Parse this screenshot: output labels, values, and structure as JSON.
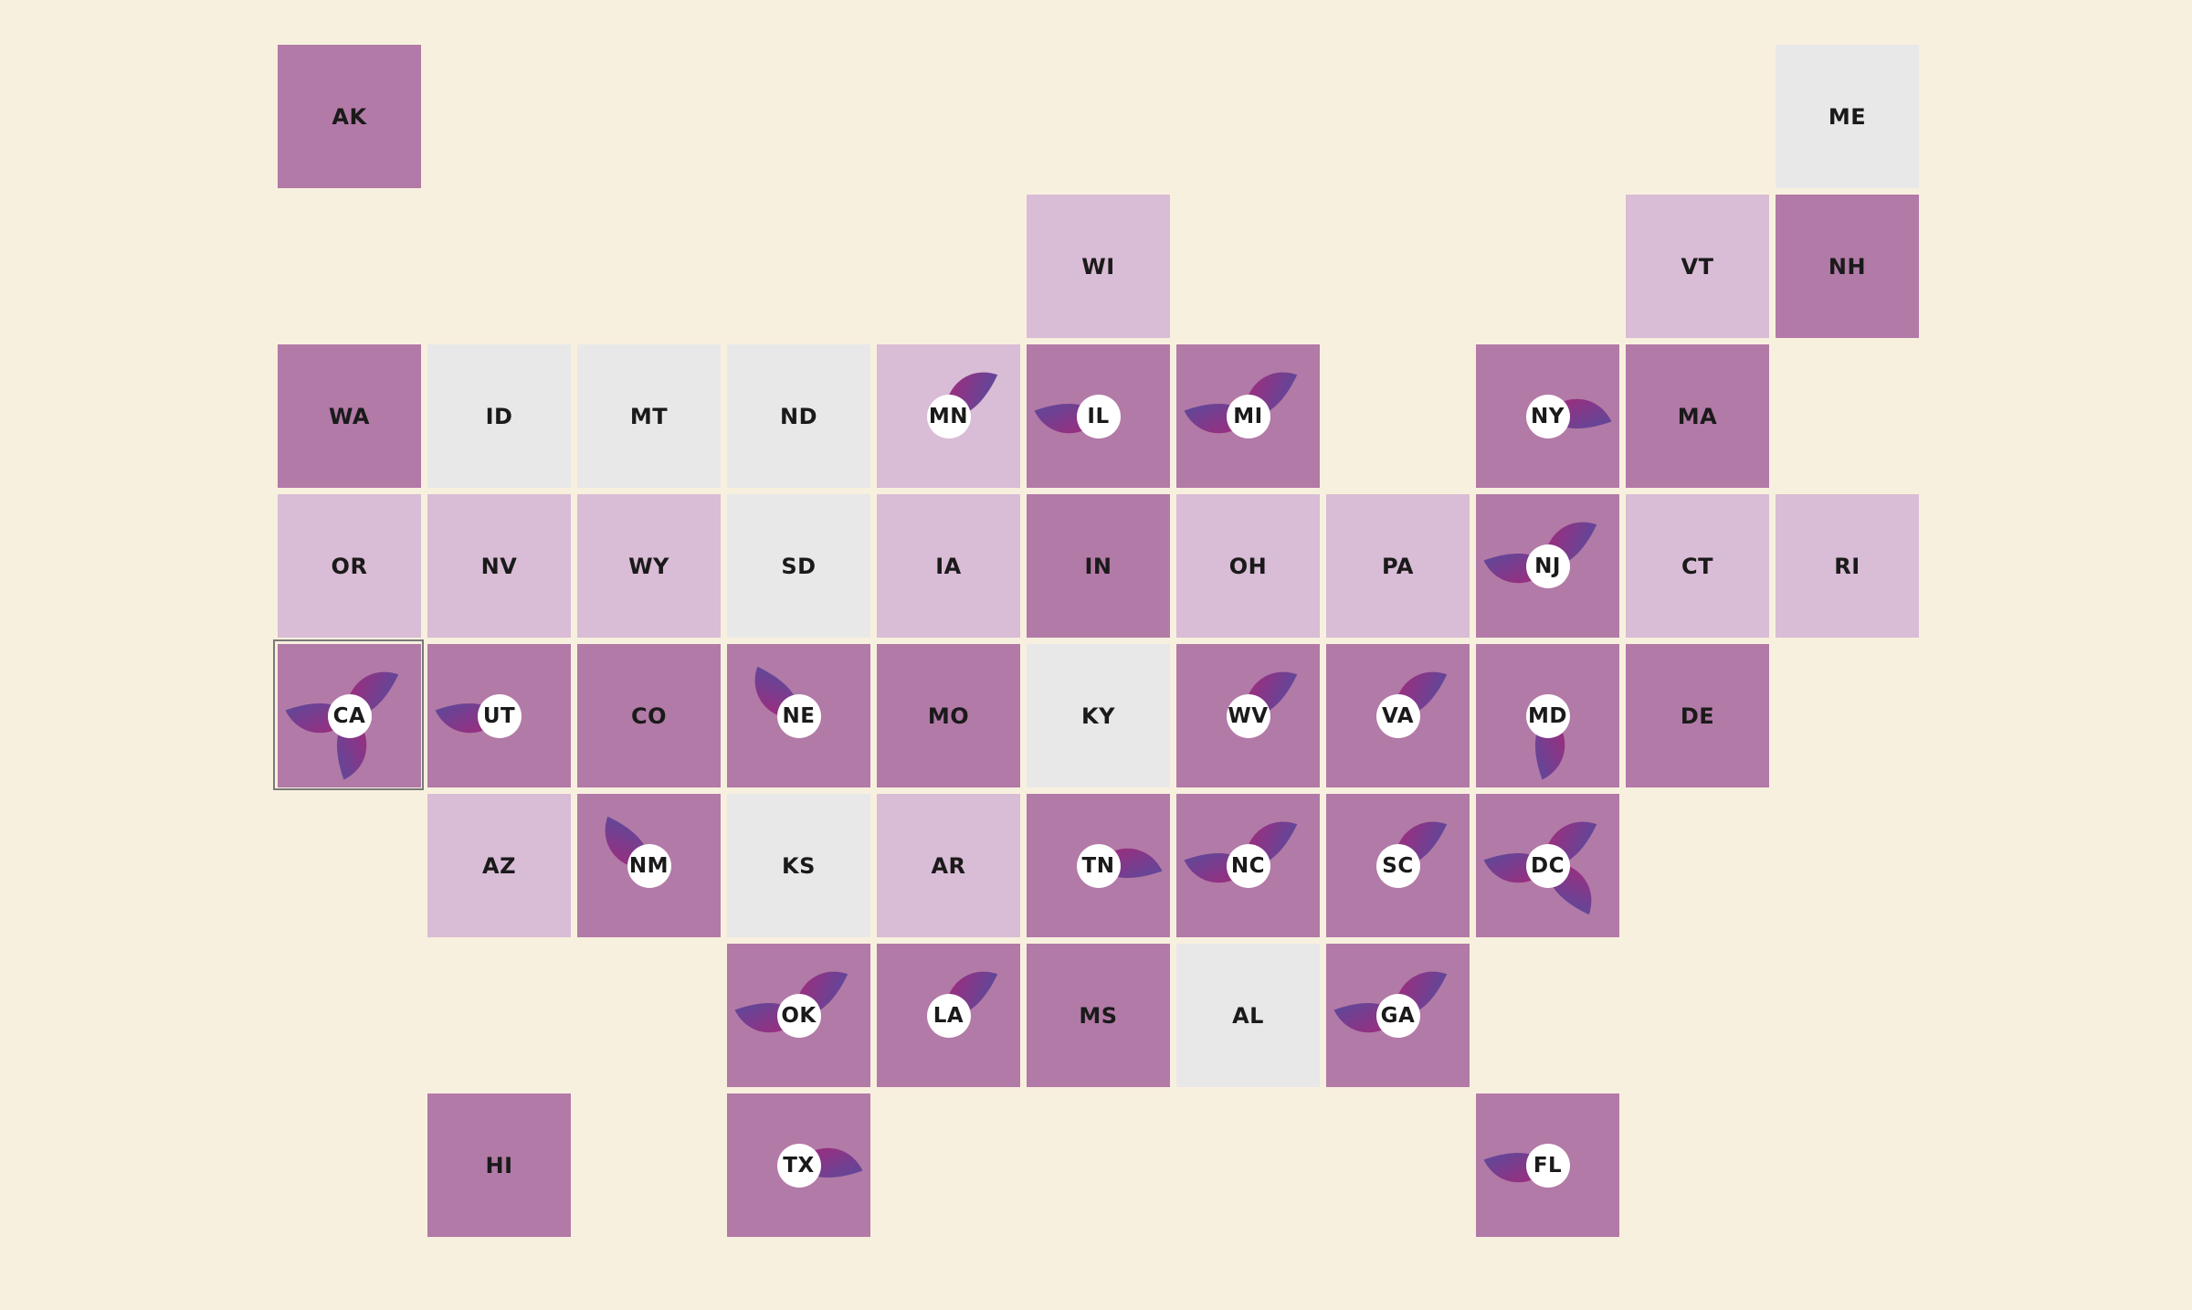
{
  "colors": {
    "background": "#f8f0de",
    "level_0": "#e8e8e8",
    "level_1": "#d9bcd5",
    "level_2": "#b27aa7",
    "petal_start": "#a32a7a",
    "petal_end": "#5a4a9c"
  },
  "selected_state": "CA",
  "states": [
    {
      "abbr": "AK",
      "col": 0,
      "row": 0,
      "level": 2,
      "petals": []
    },
    {
      "abbr": "ME",
      "col": 10,
      "row": 0,
      "level": 0,
      "petals": []
    },
    {
      "abbr": "WI",
      "col": 5,
      "row": 1,
      "level": 1,
      "petals": []
    },
    {
      "abbr": "VT",
      "col": 9,
      "row": 1,
      "level": 1,
      "petals": []
    },
    {
      "abbr": "NH",
      "col": 10,
      "row": 1,
      "level": 2,
      "petals": []
    },
    {
      "abbr": "WA",
      "col": 0,
      "row": 2,
      "level": 2,
      "petals": []
    },
    {
      "abbr": "ID",
      "col": 1,
      "row": 2,
      "level": 0,
      "petals": []
    },
    {
      "abbr": "MT",
      "col": 2,
      "row": 2,
      "level": 0,
      "petals": []
    },
    {
      "abbr": "ND",
      "col": 3,
      "row": 2,
      "level": 0,
      "petals": []
    },
    {
      "abbr": "MN",
      "col": 4,
      "row": 2,
      "level": 1,
      "petals": [
        "ne"
      ]
    },
    {
      "abbr": "IL",
      "col": 5,
      "row": 2,
      "level": 2,
      "petals": [
        "w"
      ]
    },
    {
      "abbr": "MI",
      "col": 6,
      "row": 2,
      "level": 2,
      "petals": [
        "ne",
        "w"
      ]
    },
    {
      "abbr": "NY",
      "col": 8,
      "row": 2,
      "level": 2,
      "petals": [
        "e"
      ]
    },
    {
      "abbr": "MA",
      "col": 9,
      "row": 2,
      "level": 2,
      "petals": []
    },
    {
      "abbr": "OR",
      "col": 0,
      "row": 3,
      "level": 1,
      "petals": []
    },
    {
      "abbr": "NV",
      "col": 1,
      "row": 3,
      "level": 1,
      "petals": []
    },
    {
      "abbr": "WY",
      "col": 2,
      "row": 3,
      "level": 1,
      "petals": []
    },
    {
      "abbr": "SD",
      "col": 3,
      "row": 3,
      "level": 0,
      "petals": []
    },
    {
      "abbr": "IA",
      "col": 4,
      "row": 3,
      "level": 1,
      "petals": []
    },
    {
      "abbr": "IN",
      "col": 5,
      "row": 3,
      "level": 2,
      "petals": []
    },
    {
      "abbr": "OH",
      "col": 6,
      "row": 3,
      "level": 1,
      "petals": []
    },
    {
      "abbr": "PA",
      "col": 7,
      "row": 3,
      "level": 1,
      "petals": []
    },
    {
      "abbr": "NJ",
      "col": 8,
      "row": 3,
      "level": 2,
      "petals": [
        "ne",
        "w"
      ]
    },
    {
      "abbr": "CT",
      "col": 9,
      "row": 3,
      "level": 1,
      "petals": []
    },
    {
      "abbr": "RI",
      "col": 10,
      "row": 3,
      "level": 1,
      "petals": []
    },
    {
      "abbr": "CA",
      "col": 0,
      "row": 4,
      "level": 2,
      "petals": [
        "ne",
        "w",
        "s"
      ]
    },
    {
      "abbr": "UT",
      "col": 1,
      "row": 4,
      "level": 2,
      "petals": [
        "w"
      ]
    },
    {
      "abbr": "CO",
      "col": 2,
      "row": 4,
      "level": 2,
      "petals": []
    },
    {
      "abbr": "NE",
      "col": 3,
      "row": 4,
      "level": 2,
      "petals": [
        "nw"
      ]
    },
    {
      "abbr": "MO",
      "col": 4,
      "row": 4,
      "level": 2,
      "petals": []
    },
    {
      "abbr": "KY",
      "col": 5,
      "row": 4,
      "level": 0,
      "petals": []
    },
    {
      "abbr": "WV",
      "col": 6,
      "row": 4,
      "level": 2,
      "petals": [
        "ne"
      ]
    },
    {
      "abbr": "VA",
      "col": 7,
      "row": 4,
      "level": 2,
      "petals": [
        "ne"
      ]
    },
    {
      "abbr": "MD",
      "col": 8,
      "row": 4,
      "level": 2,
      "petals": [
        "s"
      ]
    },
    {
      "abbr": "DE",
      "col": 9,
      "row": 4,
      "level": 2,
      "petals": []
    },
    {
      "abbr": "AZ",
      "col": 1,
      "row": 5,
      "level": 1,
      "petals": []
    },
    {
      "abbr": "NM",
      "col": 2,
      "row": 5,
      "level": 2,
      "petals": [
        "nw"
      ]
    },
    {
      "abbr": "KS",
      "col": 3,
      "row": 5,
      "level": 0,
      "petals": []
    },
    {
      "abbr": "AR",
      "col": 4,
      "row": 5,
      "level": 1,
      "petals": []
    },
    {
      "abbr": "TN",
      "col": 5,
      "row": 5,
      "level": 2,
      "petals": [
        "e"
      ]
    },
    {
      "abbr": "NC",
      "col": 6,
      "row": 5,
      "level": 2,
      "petals": [
        "ne",
        "w"
      ]
    },
    {
      "abbr": "SC",
      "col": 7,
      "row": 5,
      "level": 2,
      "petals": [
        "ne"
      ]
    },
    {
      "abbr": "DC",
      "col": 8,
      "row": 5,
      "level": 2,
      "petals": [
        "ne",
        "w",
        "se"
      ]
    },
    {
      "abbr": "OK",
      "col": 3,
      "row": 6,
      "level": 2,
      "petals": [
        "ne",
        "w"
      ]
    },
    {
      "abbr": "LA",
      "col": 4,
      "row": 6,
      "level": 2,
      "petals": [
        "ne"
      ]
    },
    {
      "abbr": "MS",
      "col": 5,
      "row": 6,
      "level": 2,
      "petals": []
    },
    {
      "abbr": "AL",
      "col": 6,
      "row": 6,
      "level": 0,
      "petals": []
    },
    {
      "abbr": "GA",
      "col": 7,
      "row": 6,
      "level": 2,
      "petals": [
        "ne",
        "w"
      ]
    },
    {
      "abbr": "HI",
      "col": 1,
      "row": 7,
      "level": 2,
      "petals": []
    },
    {
      "abbr": "TX",
      "col": 3,
      "row": 7,
      "level": 2,
      "petals": [
        "e"
      ]
    },
    {
      "abbr": "FL",
      "col": 8,
      "row": 7,
      "level": 2,
      "petals": [
        "w"
      ]
    }
  ]
}
